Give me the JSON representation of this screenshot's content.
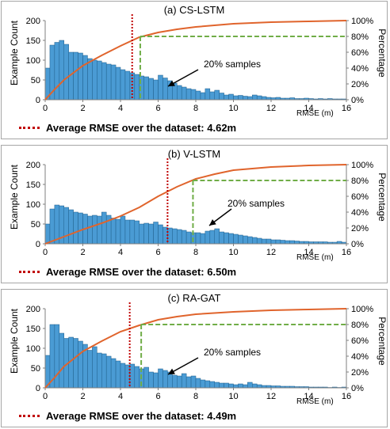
{
  "chart_data": [
    {
      "type": "bar",
      "title": "(a) CS-LSTM",
      "xlabel": "RMSE (m)",
      "ylabel": "Example Count",
      "ylabel_right": "Percentage",
      "xlim": [
        0,
        16
      ],
      "ylim": [
        0,
        200
      ],
      "ylim_right": [
        0,
        100
      ],
      "x_ticks": [
        "0",
        "2",
        "4",
        "6",
        "8",
        "10",
        "12",
        "14",
        "16"
      ],
      "y_ticks": [
        "0",
        "50",
        "100",
        "150",
        "200"
      ],
      "y_ticks_right": [
        "0%",
        "20%",
        "40%",
        "60%",
        "80%",
        "100%"
      ],
      "bin_width": 0.25,
      "counts": [
        80,
        138,
        145,
        150,
        140,
        120,
        120,
        118,
        112,
        104,
        100,
        98,
        94,
        90,
        88,
        82,
        76,
        72,
        68,
        64,
        60,
        58,
        54,
        50,
        62,
        55,
        48,
        42,
        36,
        32,
        28,
        26,
        22,
        18,
        28,
        20,
        24,
        17,
        12,
        14,
        10,
        11,
        9,
        8,
        12,
        10,
        8,
        6,
        5,
        6,
        4,
        4,
        5,
        3,
        3,
        4,
        3,
        2,
        3,
        2,
        3,
        2,
        2,
        2
      ],
      "mean_rmse": 4.62,
      "p80_rmse": 5.05,
      "cumulative_pct": {
        "x": [
          0,
          0.5,
          1,
          2,
          3,
          4,
          5,
          6,
          7,
          8,
          10,
          12,
          14,
          16
        ],
        "y": [
          0,
          13,
          25,
          43,
          56,
          68,
          79,
          85,
          89,
          92,
          96,
          98,
          99,
          100
        ]
      },
      "legend_text": "Average RMSE over the dataset: 4.62m",
      "annotation": "20% samples",
      "colors": {
        "bar": "#4a9bd4",
        "bar_edge": "#1f5f8b",
        "curve": "#e0642c",
        "mean": "#c00000",
        "threshold": "#70ad47"
      }
    },
    {
      "type": "bar",
      "title": "(b) V-LSTM",
      "xlabel": "RMSE (m)",
      "ylabel": "Example Count",
      "ylabel_right": "Percentage",
      "xlim": [
        0,
        16
      ],
      "ylim": [
        0,
        200
      ],
      "ylim_right": [
        0,
        100
      ],
      "x_ticks": [
        "0",
        "2",
        "4",
        "6",
        "8",
        "10",
        "12",
        "14",
        "16"
      ],
      "y_ticks": [
        "0",
        "50",
        "100",
        "150",
        "200"
      ],
      "y_ticks_right": [
        "0%",
        "20%",
        "40%",
        "60%",
        "80%",
        "100%"
      ],
      "bin_width": 0.25,
      "counts": [
        50,
        88,
        98,
        96,
        92,
        86,
        80,
        78,
        75,
        70,
        72,
        70,
        80,
        72,
        65,
        62,
        70,
        60,
        60,
        58,
        50,
        52,
        50,
        55,
        48,
        42,
        40,
        38,
        36,
        34,
        30,
        28,
        28,
        26,
        32,
        34,
        38,
        30,
        28,
        26,
        24,
        22,
        20,
        18,
        16,
        14,
        12,
        12,
        10,
        10,
        9,
        8,
        8,
        7,
        6,
        6,
        5,
        5,
        5,
        5,
        4,
        4,
        6,
        4
      ],
      "mean_rmse": 6.5,
      "p80_rmse": 7.85,
      "cumulative_pct": {
        "x": [
          0,
          1,
          2,
          3,
          4,
          5,
          6,
          7,
          8,
          9,
          10,
          12,
          14,
          16
        ],
        "y": [
          0,
          9,
          18,
          26,
          35,
          46,
          60,
          72,
          82,
          88,
          93,
          97,
          99,
          100
        ]
      },
      "legend_text": "Average RMSE over the dataset: 6.50m",
      "annotation": "20% samples",
      "colors": {
        "bar": "#4a9bd4",
        "bar_edge": "#1f5f8b",
        "curve": "#e0642c",
        "mean": "#c00000",
        "threshold": "#70ad47"
      }
    },
    {
      "type": "bar",
      "title": "(c) RA-GAT",
      "xlabel": "RMSE (m)",
      "ylabel": "Example Count",
      "ylabel_right": "Percentage",
      "xlim": [
        0,
        16
      ],
      "ylim": [
        0,
        200
      ],
      "ylim_right": [
        0,
        100
      ],
      "x_ticks": [
        "0",
        "2",
        "4",
        "6",
        "8",
        "10",
        "12",
        "14",
        "16"
      ],
      "y_ticks": [
        "0",
        "50",
        "100",
        "150",
        "200"
      ],
      "y_ticks_right": [
        "0%",
        "20%",
        "40%",
        "60%",
        "80%",
        "100%"
      ],
      "bin_width": 0.25,
      "counts": [
        82,
        160,
        160,
        138,
        125,
        128,
        125,
        118,
        110,
        95,
        104,
        88,
        86,
        80,
        74,
        68,
        62,
        58,
        60,
        54,
        48,
        52,
        40,
        38,
        48,
        44,
        40,
        32,
        30,
        36,
        28,
        30,
        24,
        20,
        18,
        16,
        14,
        12,
        12,
        10,
        8,
        10,
        8,
        14,
        10,
        8,
        6,
        6,
        5,
        5,
        4,
        4,
        4,
        3,
        3,
        3,
        2,
        2,
        2,
        2,
        1,
        2,
        1,
        2
      ],
      "mean_rmse": 4.49,
      "p80_rmse": 5.1,
      "cumulative_pct": {
        "x": [
          0,
          0.5,
          1,
          2,
          3,
          4,
          5,
          6,
          7,
          8,
          10,
          12,
          14,
          16
        ],
        "y": [
          0,
          13,
          27,
          46,
          59,
          71,
          79,
          86,
          90,
          93,
          96,
          98,
          99,
          100
        ]
      },
      "legend_text": "Average RMSE over the dataset: 4.49m",
      "annotation": "20% samples",
      "colors": {
        "bar": "#4a9bd4",
        "bar_edge": "#1f5f8b",
        "curve": "#e0642c",
        "mean": "#c00000",
        "threshold": "#70ad47"
      }
    }
  ]
}
